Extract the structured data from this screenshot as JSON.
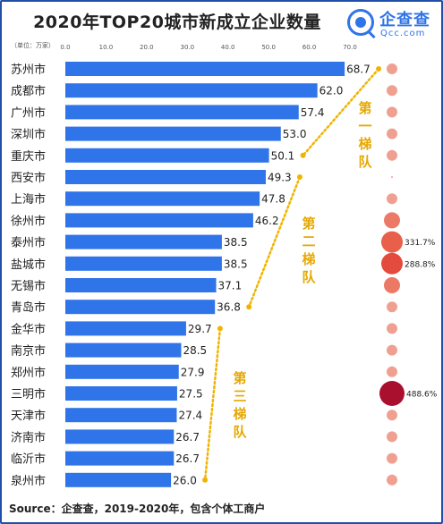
{
  "title": "2020年TOP20城市新成立企业数量",
  "logo": {
    "name_cn": "企查查",
    "name_en": "Qcc.com"
  },
  "unit_label": "（单位：万家）",
  "source": "Source：企查查，2019-2020年，包含个体工商户",
  "colors": {
    "bar": "#2f74e8",
    "dotted_line": "#f0b400",
    "tier_text": "#e6a800",
    "bubble_light": "#f0a090",
    "bubble_mid": "#e8604a",
    "bubble_dark": "#a8102e"
  },
  "chart_data": {
    "type": "bar",
    "orientation": "horizontal",
    "title": "2020年TOP20城市新成立企业数量",
    "xlabel": "",
    "ylabel": "",
    "xlim": [
      0,
      70
    ],
    "x_ticks": [
      "0.0",
      "10.0",
      "20.0",
      "30.0",
      "40.0",
      "50.0",
      "60.0",
      "70.0"
    ],
    "categories": [
      "苏州市",
      "成都市",
      "广州市",
      "深圳市",
      "重庆市",
      "西安市",
      "上海市",
      "徐州市",
      "泰州市",
      "盐城市",
      "无锡市",
      "青岛市",
      "金华市",
      "南京市",
      "郑州市",
      "三明市",
      "天津市",
      "济南市",
      "临沂市",
      "泉州市"
    ],
    "values": [
      68.7,
      62.0,
      57.4,
      53.0,
      50.1,
      49.3,
      47.8,
      46.2,
      38.5,
      38.5,
      37.1,
      36.8,
      29.7,
      28.5,
      27.9,
      27.5,
      27.4,
      26.7,
      26.7,
      26.0
    ],
    "value_labels": [
      "68.7",
      "62.0",
      "57.4",
      "53.0",
      "50.1",
      "49.3",
      "47.8",
      "46.2",
      "38.5",
      "38.5",
      "37.1",
      "36.8",
      "29.7",
      "28.5",
      "27.9",
      "27.5",
      "27.4",
      "26.7",
      "26.7",
      "26.0"
    ],
    "growth_bubbles": {
      "highlight_labels": {
        "8": "331.7%",
        "9": "288.8%",
        "15": "488.6%"
      },
      "level": [
        1,
        1,
        1,
        1,
        1,
        0,
        1,
        2,
        3,
        3,
        2,
        1,
        1,
        1,
        1,
        4,
        1,
        1,
        1,
        1
      ]
    },
    "tiers": [
      {
        "label": "第一梯队",
        "from": 0,
        "to": 4
      },
      {
        "label": "第二梯队",
        "from": 5,
        "to": 11
      },
      {
        "label": "第三梯队",
        "from": 12,
        "to": 19
      }
    ],
    "grid": false,
    "legend": "none"
  }
}
